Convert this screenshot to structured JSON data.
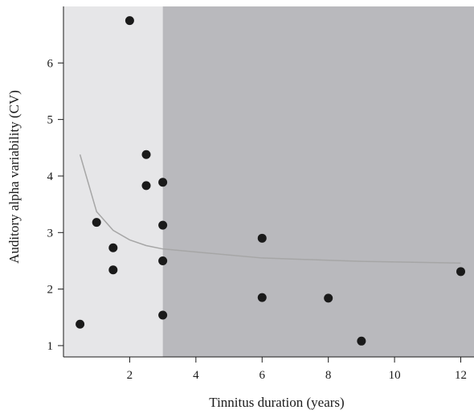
{
  "chart_data": {
    "type": "scatter",
    "xlabel": "Tinnitus duration (years)",
    "ylabel": "Auditory alpha variability (CV)",
    "xlim": [
      0,
      12.4
    ],
    "ylim": [
      0.8,
      7.0
    ],
    "xticks": [
      2,
      4,
      6,
      8,
      10,
      12
    ],
    "yticks": [
      1,
      2,
      3,
      4,
      5,
      6
    ],
    "grid": false,
    "shaded_regions": [
      {
        "x_from": 0,
        "x_to": 3,
        "color": "#e6e6e8"
      },
      {
        "x_from": 3,
        "x_to": 12.4,
        "color": "#b9b9bd"
      }
    ],
    "series": [
      {
        "type": "scatter",
        "color": "#1a1a1a",
        "points": [
          {
            "x": 0.5,
            "y": 1.38
          },
          {
            "x": 1.0,
            "y": 3.18
          },
          {
            "x": 1.5,
            "y": 2.73
          },
          {
            "x": 1.5,
            "y": 2.34
          },
          {
            "x": 2.0,
            "y": 6.75
          },
          {
            "x": 2.5,
            "y": 4.38
          },
          {
            "x": 2.5,
            "y": 3.83
          },
          {
            "x": 3.0,
            "y": 3.89
          },
          {
            "x": 3.0,
            "y": 3.13
          },
          {
            "x": 3.0,
            "y": 2.5
          },
          {
            "x": 3.0,
            "y": 1.54
          },
          {
            "x": 6.0,
            "y": 2.9
          },
          {
            "x": 6.0,
            "y": 1.85
          },
          {
            "x": 8.0,
            "y": 1.84
          },
          {
            "x": 9.0,
            "y": 1.08
          },
          {
            "x": 12.0,
            "y": 2.31
          }
        ]
      },
      {
        "type": "line",
        "color": "#a6a6a6",
        "points": [
          {
            "x": 0.5,
            "y": 4.38
          },
          {
            "x": 1.0,
            "y": 3.37
          },
          {
            "x": 1.5,
            "y": 3.04
          },
          {
            "x": 2.0,
            "y": 2.87
          },
          {
            "x": 2.5,
            "y": 2.77
          },
          {
            "x": 3.0,
            "y": 2.71
          },
          {
            "x": 6.0,
            "y": 2.55
          },
          {
            "x": 8.0,
            "y": 2.51
          },
          {
            "x": 9.0,
            "y": 2.49
          },
          {
            "x": 12.0,
            "y": 2.46
          }
        ]
      }
    ]
  }
}
